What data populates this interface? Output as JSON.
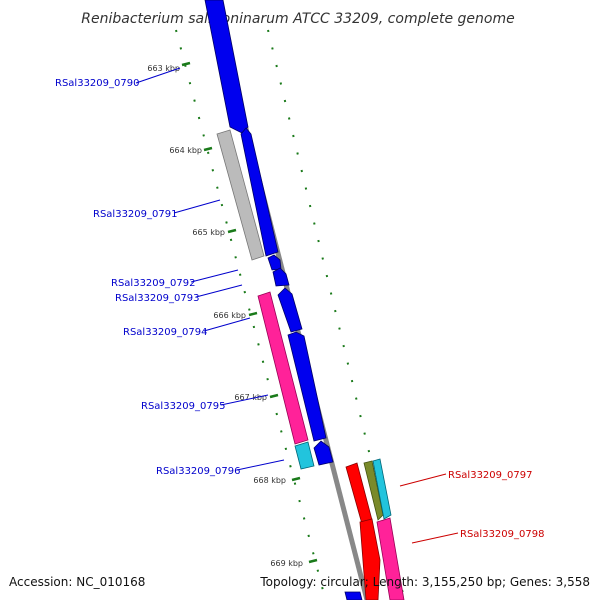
{
  "title": "Renibacterium salmoninarum ATCC 33209, complete genome",
  "footer": {
    "accession": "Accession: NC_010168",
    "summary": "Topology: circular; Length: 3,155,250 bp; Genes: 3,558"
  },
  "ticks": [
    "663 kbp",
    "664 kbp",
    "665 kbp",
    "666 kbp",
    "667 kbp",
    "668 kbp",
    "669 kbp"
  ],
  "gene_labels_left": [
    "RSal33209_0790",
    "RSal33209_0791",
    "RSal33209_0792",
    "RSal33209_0793",
    "RSal33209_0794",
    "RSal33209_0795",
    "RSal33209_0796"
  ],
  "gene_labels_right": [
    "RSal33209_0797",
    "RSal33209_0798"
  ],
  "colors": {
    "blue": "#0000ee",
    "gray": "#bbbbbb",
    "pink": "#ff2299",
    "cyan": "#22c4dd",
    "red": "#ff0000",
    "olive": "#7a8a2a",
    "backbone": "#888888",
    "tick": "#1a7a1a",
    "left_label": "#0000cc",
    "right_label": "#cc0000"
  }
}
